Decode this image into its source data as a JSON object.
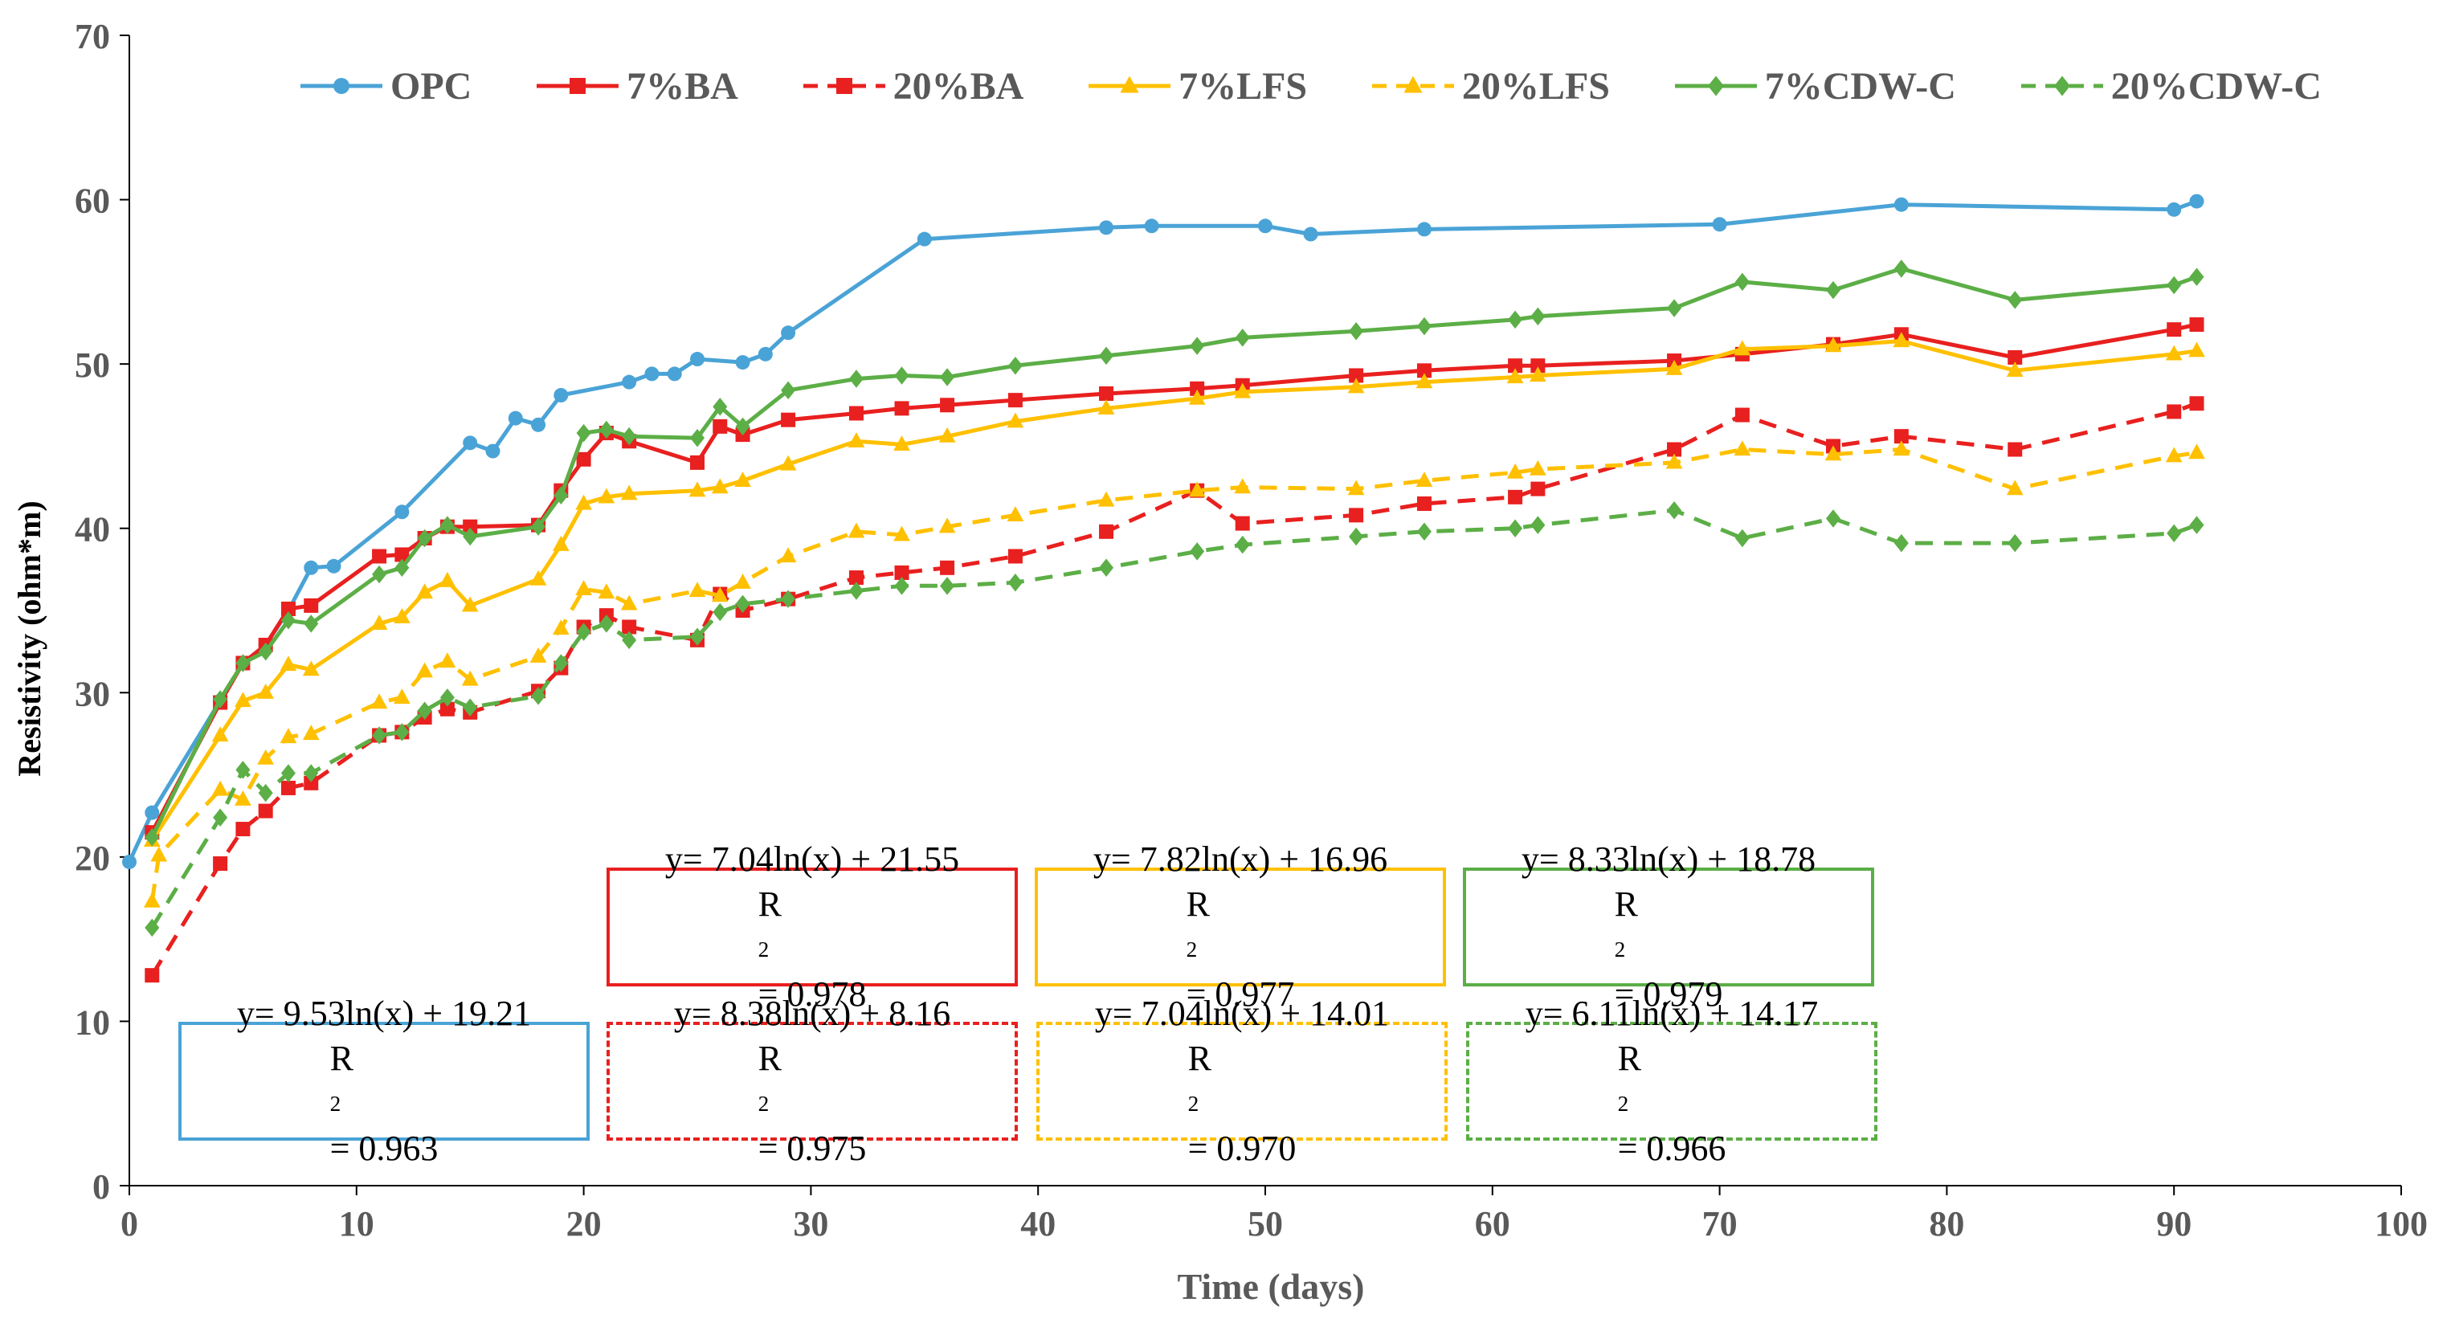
{
  "chart_data": {
    "type": "line",
    "title": "",
    "xlabel": "Time (days)",
    "ylabel": "Resistivity (ohm*m)",
    "xlim": [
      0,
      100
    ],
    "ylim": [
      0,
      70
    ],
    "x_ticks": [
      "0",
      "10",
      "20",
      "30",
      "40",
      "50",
      "60",
      "70",
      "80",
      "90",
      "100"
    ],
    "y_ticks": [
      "0",
      "10",
      "20",
      "30",
      "40",
      "50",
      "60",
      "70"
    ],
    "grid": false,
    "legend_position": "top",
    "series": [
      {
        "name": "OPC",
        "color": "#4aa3d6",
        "dash": "solid",
        "marker": "circle",
        "points": [
          [
            0,
            19.7
          ],
          [
            1,
            22.7
          ],
          [
            4,
            29.5
          ],
          [
            5,
            31.8
          ],
          [
            6,
            32.9
          ],
          [
            7,
            35.0
          ],
          [
            8,
            37.6
          ],
          [
            9,
            37.7
          ],
          [
            12,
            41.0
          ],
          [
            15,
            45.2
          ],
          [
            16,
            44.7
          ],
          [
            17,
            46.7
          ],
          [
            18,
            46.3
          ],
          [
            19,
            48.1
          ],
          [
            22,
            48.9
          ],
          [
            23,
            49.4
          ],
          [
            24,
            49.4
          ],
          [
            25,
            50.3
          ],
          [
            27,
            50.1
          ],
          [
            28,
            50.6
          ],
          [
            29,
            51.9
          ],
          [
            35,
            57.6
          ],
          [
            43,
            58.3
          ],
          [
            45,
            58.4
          ],
          [
            50,
            58.4
          ],
          [
            52,
            57.9
          ],
          [
            57,
            58.2
          ],
          [
            70,
            58.5
          ],
          [
            78,
            59.7
          ],
          [
            90,
            59.4
          ],
          [
            91,
            59.9
          ]
        ]
      },
      {
        "name": "7%BA",
        "color": "#e8201f",
        "dash": "solid",
        "marker": "square",
        "points": [
          [
            1,
            21.5
          ],
          [
            4,
            29.4
          ],
          [
            5,
            31.8
          ],
          [
            6,
            32.9
          ],
          [
            7,
            35.1
          ],
          [
            8,
            35.3
          ],
          [
            11,
            38.3
          ],
          [
            12,
            38.4
          ],
          [
            13,
            39.4
          ],
          [
            14,
            40.1
          ],
          [
            15,
            40.1
          ],
          [
            18,
            40.2
          ],
          [
            19,
            42.3
          ],
          [
            20,
            44.2
          ],
          [
            21,
            45.8
          ],
          [
            22,
            45.3
          ],
          [
            25,
            44.0
          ],
          [
            26,
            46.2
          ],
          [
            27,
            45.7
          ],
          [
            29,
            46.6
          ],
          [
            32,
            47.0
          ],
          [
            34,
            47.3
          ],
          [
            36,
            47.5
          ],
          [
            39,
            47.8
          ],
          [
            43,
            48.2
          ],
          [
            47,
            48.5
          ],
          [
            49,
            48.7
          ],
          [
            54,
            49.3
          ],
          [
            57,
            49.6
          ],
          [
            61,
            49.9
          ],
          [
            62,
            49.9
          ],
          [
            68,
            50.2
          ],
          [
            71,
            50.6
          ],
          [
            75,
            51.2
          ],
          [
            78,
            51.8
          ],
          [
            83,
            50.4
          ],
          [
            90,
            52.1
          ],
          [
            91,
            52.4
          ]
        ]
      },
      {
        "name": "20%BA",
        "color": "#e8201f",
        "dash": "dashed",
        "marker": "square",
        "points": [
          [
            1,
            12.8
          ],
          [
            4,
            19.6
          ],
          [
            5,
            21.7
          ],
          [
            6,
            22.8
          ],
          [
            7,
            24.2
          ],
          [
            8,
            24.5
          ],
          [
            11,
            27.4
          ],
          [
            12,
            27.6
          ],
          [
            13,
            28.5
          ],
          [
            14,
            29.0
          ],
          [
            15,
            28.8
          ],
          [
            18,
            30.1
          ],
          [
            19,
            31.5
          ],
          [
            20,
            34.0
          ],
          [
            21,
            34.7
          ],
          [
            22,
            34.0
          ],
          [
            25,
            33.2
          ],
          [
            26,
            36.0
          ],
          [
            27,
            35.0
          ],
          [
            29,
            35.7
          ],
          [
            32,
            37.0
          ],
          [
            34,
            37.3
          ],
          [
            36,
            37.6
          ],
          [
            39,
            38.3
          ],
          [
            43,
            39.8
          ],
          [
            47,
            42.3
          ],
          [
            49,
            40.3
          ],
          [
            54,
            40.8
          ],
          [
            57,
            41.5
          ],
          [
            61,
            41.9
          ],
          [
            62,
            42.4
          ],
          [
            68,
            44.8
          ],
          [
            71,
            46.9
          ],
          [
            75,
            45.0
          ],
          [
            78,
            45.6
          ],
          [
            83,
            44.8
          ],
          [
            90,
            47.1
          ],
          [
            91,
            47.6
          ]
        ]
      },
      {
        "name": "7%LFS",
        "color": "#ffc000",
        "dash": "solid",
        "marker": "triangle",
        "points": [
          [
            1,
            21.0
          ],
          [
            4,
            27.4
          ],
          [
            5,
            29.5
          ],
          [
            6,
            30.0
          ],
          [
            7,
            31.7
          ],
          [
            8,
            31.4
          ],
          [
            11,
            34.2
          ],
          [
            12,
            34.6
          ],
          [
            13,
            36.1
          ],
          [
            14,
            36.8
          ],
          [
            15,
            35.3
          ],
          [
            18,
            36.9
          ],
          [
            19,
            39.0
          ],
          [
            20,
            41.5
          ],
          [
            21,
            41.9
          ],
          [
            22,
            42.1
          ],
          [
            25,
            42.3
          ],
          [
            26,
            42.5
          ],
          [
            27,
            42.9
          ],
          [
            29,
            43.9
          ],
          [
            32,
            45.3
          ],
          [
            34,
            45.1
          ],
          [
            36,
            45.6
          ],
          [
            39,
            46.5
          ],
          [
            43,
            47.3
          ],
          [
            47,
            47.9
          ],
          [
            49,
            48.3
          ],
          [
            54,
            48.6
          ],
          [
            57,
            48.9
          ],
          [
            61,
            49.2
          ],
          [
            62,
            49.3
          ],
          [
            68,
            49.7
          ],
          [
            71,
            50.9
          ],
          [
            75,
            51.1
          ],
          [
            78,
            51.4
          ],
          [
            83,
            49.6
          ],
          [
            90,
            50.6
          ],
          [
            91,
            50.8
          ]
        ]
      },
      {
        "name": "20%LFS",
        "color": "#ffc000",
        "dash": "dashed",
        "marker": "triangle",
        "points": [
          [
            1,
            17.3
          ],
          [
            1.3,
            20.1
          ],
          [
            4,
            24.1
          ],
          [
            5,
            23.5
          ],
          [
            6,
            26.0
          ],
          [
            7,
            27.3
          ],
          [
            8,
            27.5
          ],
          [
            11,
            29.4
          ],
          [
            12,
            29.7
          ],
          [
            13,
            31.3
          ],
          [
            14,
            31.9
          ],
          [
            15,
            30.8
          ],
          [
            18,
            32.2
          ],
          [
            19,
            33.9
          ],
          [
            20,
            36.3
          ],
          [
            21,
            36.1
          ],
          [
            22,
            35.4
          ],
          [
            25,
            36.2
          ],
          [
            26,
            35.9
          ],
          [
            27,
            36.7
          ],
          [
            29,
            38.3
          ],
          [
            32,
            39.8
          ],
          [
            34,
            39.6
          ],
          [
            36,
            40.1
          ],
          [
            39,
            40.8
          ],
          [
            43,
            41.7
          ],
          [
            47,
            42.3
          ],
          [
            49,
            42.5
          ],
          [
            54,
            42.4
          ],
          [
            57,
            42.9
          ],
          [
            61,
            43.4
          ],
          [
            62,
            43.6
          ],
          [
            68,
            44.0
          ],
          [
            71,
            44.8
          ],
          [
            75,
            44.5
          ],
          [
            78,
            44.8
          ],
          [
            83,
            42.4
          ],
          [
            90,
            44.4
          ],
          [
            91,
            44.6
          ]
        ]
      },
      {
        "name": "7%CDW-C",
        "color": "#5cae46",
        "dash": "solid",
        "marker": "diamond",
        "points": [
          [
            1,
            21.2
          ],
          [
            4,
            29.6
          ],
          [
            5,
            31.8
          ],
          [
            6,
            32.5
          ],
          [
            7,
            34.4
          ],
          [
            8,
            34.2
          ],
          [
            11,
            37.2
          ],
          [
            12,
            37.6
          ],
          [
            13,
            39.4
          ],
          [
            14,
            40.2
          ],
          [
            15,
            39.5
          ],
          [
            18,
            40.1
          ],
          [
            19,
            42.0
          ],
          [
            20,
            45.8
          ],
          [
            21,
            46.0
          ],
          [
            22,
            45.6
          ],
          [
            25,
            45.5
          ],
          [
            26,
            47.4
          ],
          [
            27,
            46.2
          ],
          [
            29,
            48.4
          ],
          [
            32,
            49.1
          ],
          [
            34,
            49.3
          ],
          [
            36,
            49.2
          ],
          [
            39,
            49.9
          ],
          [
            43,
            50.5
          ],
          [
            47,
            51.1
          ],
          [
            49,
            51.6
          ],
          [
            54,
            52.0
          ],
          [
            57,
            52.3
          ],
          [
            61,
            52.7
          ],
          [
            62,
            52.9
          ],
          [
            68,
            53.4
          ],
          [
            71,
            55.0
          ],
          [
            75,
            54.5
          ],
          [
            78,
            55.8
          ],
          [
            83,
            53.9
          ],
          [
            90,
            54.8
          ],
          [
            91,
            55.3
          ]
        ]
      },
      {
        "name": "20%CDW-C",
        "color": "#5cae46",
        "dash": "dashed",
        "marker": "diamond",
        "points": [
          [
            1,
            15.7
          ],
          [
            4,
            22.4
          ],
          [
            5,
            25.3
          ],
          [
            6,
            23.9
          ],
          [
            7,
            25.1
          ],
          [
            8,
            25.1
          ],
          [
            11,
            27.4
          ],
          [
            12,
            27.6
          ],
          [
            13,
            28.9
          ],
          [
            14,
            29.7
          ],
          [
            15,
            29.1
          ],
          [
            18,
            29.8
          ],
          [
            19,
            31.8
          ],
          [
            20,
            33.7
          ],
          [
            21,
            34.2
          ],
          [
            22,
            33.2
          ],
          [
            25,
            33.4
          ],
          [
            26,
            34.9
          ],
          [
            27,
            35.4
          ],
          [
            29,
            35.7
          ],
          [
            32,
            36.2
          ],
          [
            34,
            36.5
          ],
          [
            36,
            36.5
          ],
          [
            39,
            36.7
          ],
          [
            43,
            37.6
          ],
          [
            47,
            38.6
          ],
          [
            49,
            39.0
          ],
          [
            54,
            39.5
          ],
          [
            57,
            39.8
          ],
          [
            61,
            40.0
          ],
          [
            62,
            40.2
          ],
          [
            68,
            41.1
          ],
          [
            71,
            39.4
          ],
          [
            75,
            40.6
          ],
          [
            78,
            39.1
          ],
          [
            83,
            39.1
          ],
          [
            90,
            39.7
          ],
          [
            91,
            40.2
          ]
        ]
      }
    ],
    "annotations": [
      {
        "series": "OPC",
        "equation": "y= 9.53ln(x) + 19.21",
        "r2_label": "R",
        "r2_sup": "2",
        "r2_value": "= 0.963"
      },
      {
        "series": "7%BA",
        "equation": "y= 7.04ln(x) + 21.55",
        "r2_label": "R",
        "r2_sup": "2",
        "r2_value": "= 0.978"
      },
      {
        "series": "20%BA",
        "equation": "y= 8.38ln(x) + 8.16",
        "r2_label": "R",
        "r2_sup": "2",
        "r2_value": "= 0.975"
      },
      {
        "series": "7%LFS",
        "equation": "y= 7.82ln(x) + 16.96",
        "r2_label": "R",
        "r2_sup": "2",
        "r2_value": "= 0.977"
      },
      {
        "series": "20%LFS",
        "equation": "y= 7.04ln(x) + 14.01",
        "r2_label": "R",
        "r2_sup": "2",
        "r2_value": "= 0.970"
      },
      {
        "series": "7%CDW-C",
        "equation": "y= 8.33ln(x) + 18.78",
        "r2_label": "R",
        "r2_sup": "2",
        "r2_value": "= 0.979"
      },
      {
        "series": "20%CDW-C",
        "equation": "y= 6.11ln(x) + 14.17",
        "r2_label": "R",
        "r2_sup": "2",
        "r2_value": "= 0.966"
      }
    ]
  }
}
